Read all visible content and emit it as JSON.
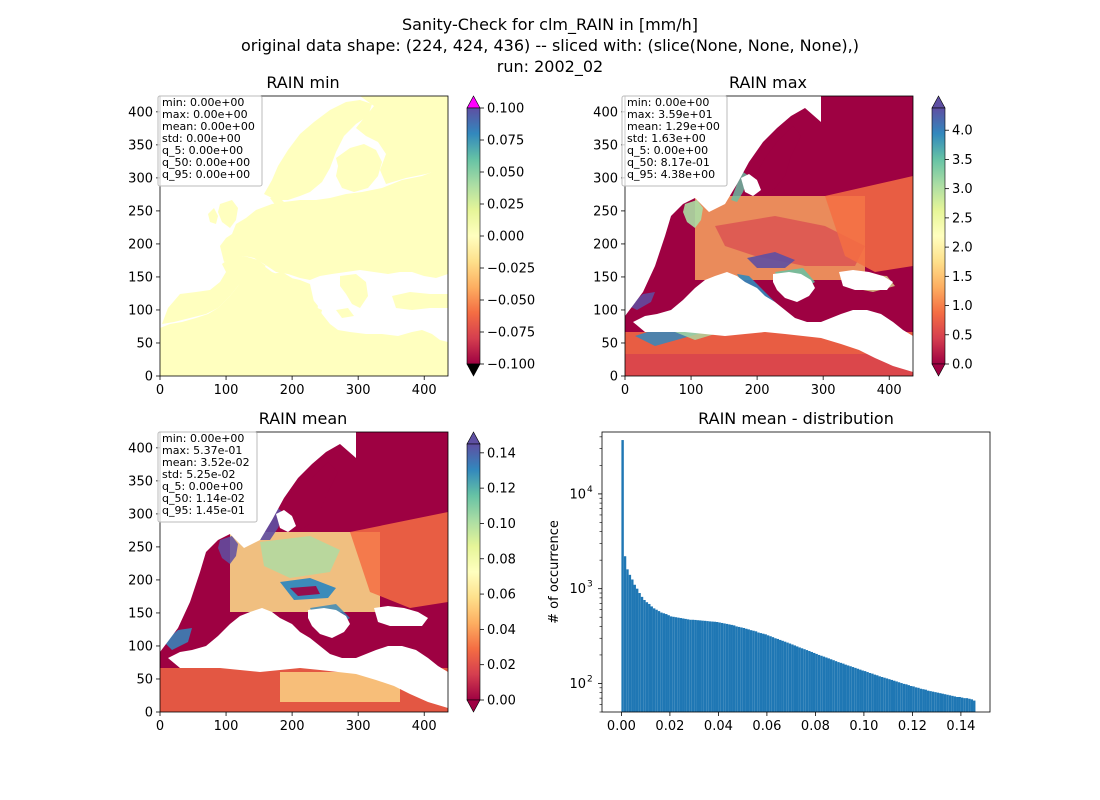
{
  "figure": {
    "suptitle_lines": [
      "Sanity-Check for clm_RAIN in [mm/h]",
      "original data shape: (224, 424, 436) -- sliced with: (slice(None, None, None),)",
      "run: 2002_02"
    ]
  },
  "chart_data": [
    {
      "type": "heatmap",
      "title": "RAIN min",
      "xticks": [
        "0",
        "100",
        "200",
        "300",
        "400"
      ],
      "yticks": [
        "0",
        "50",
        "100",
        "150",
        "200",
        "250",
        "300",
        "350",
        "400"
      ],
      "xlim": [
        0,
        436
      ],
      "ylim": [
        0,
        424
      ],
      "colorbar": {
        "cmap": "Spectral",
        "range": [
          -0.1,
          0.1
        ],
        "ticks": [
          "0.100",
          "0.075",
          "0.050",
          "0.025",
          "0.000",
          "−0.025",
          "−0.050",
          "−0.075",
          "−0.100"
        ],
        "extend": "both",
        "over_color": "#ff00ff",
        "under_color": "#000000"
      },
      "field_value": "0.0 everywhere over land (uniform pale yellow); sea masked (white)",
      "stats": [
        "min: 0.00e+00",
        "max: 0.00e+00",
        "mean: 0.00e+00",
        "std: 0.00e+00",
        "q_5: 0.00e+00",
        "q_50: 0.00e+00",
        "q_95: 0.00e+00"
      ]
    },
    {
      "type": "heatmap",
      "title": "RAIN max",
      "xticks": [
        "0",
        "100",
        "200",
        "300",
        "400"
      ],
      "yticks": [
        "0",
        "50",
        "100",
        "150",
        "200",
        "250",
        "300",
        "350",
        "400"
      ],
      "xlim": [
        0,
        436
      ],
      "ylim": [
        0,
        424
      ],
      "colorbar": {
        "cmap": "Spectral",
        "range": [
          0.0,
          4.38
        ],
        "ticks": [
          "4.0",
          "3.5",
          "3.0",
          "2.5",
          "2.0",
          "1.5",
          "1.0",
          "0.5",
          "0.0"
        ],
        "extend": "both"
      },
      "stats": [
        "min: 0.00e+00",
        "max: 3.59e+01",
        "mean: 1.29e+00",
        "std: 1.63e+00",
        "q_5: 0.00e+00",
        "q_50: 8.17e-01",
        "q_95: 4.38e+00"
      ]
    },
    {
      "type": "heatmap",
      "title": "RAIN mean",
      "xticks": [
        "0",
        "100",
        "200",
        "300",
        "400"
      ],
      "yticks": [
        "0",
        "50",
        "100",
        "150",
        "200",
        "250",
        "300",
        "350",
        "400"
      ],
      "xlim": [
        0,
        436
      ],
      "ylim": [
        0,
        424
      ],
      "colorbar": {
        "cmap": "Spectral",
        "range": [
          0.0,
          0.145
        ],
        "ticks": [
          "0.14",
          "0.12",
          "0.10",
          "0.08",
          "0.06",
          "0.04",
          "0.02",
          "0.00"
        ],
        "extend": "both"
      },
      "stats": [
        "min: 0.00e+00",
        "max: 5.37e-01",
        "mean: 3.52e-02",
        "std: 5.25e-02",
        "q_5: 0.00e+00",
        "q_50: 1.14e-02",
        "q_95: 1.45e-01"
      ]
    },
    {
      "type": "bar",
      "title": "RAIN mean - distribution",
      "ylabel": "# of occurrence",
      "xlabel": "",
      "yscale": "log",
      "xlim": [
        -0.008,
        0.152
      ],
      "ylim": [
        50,
        45000
      ],
      "xticks": [
        "0.00",
        "0.02",
        "0.04",
        "0.06",
        "0.08",
        "0.10",
        "0.12",
        "0.14"
      ],
      "ytick_labels": [
        "10",
        "10",
        "10"
      ],
      "ytick_exponents": [
        "2",
        "3",
        "4"
      ],
      "color": "#1f77b4",
      "bin_start": 0.0,
      "bin_width": 0.001,
      "counts": [
        37000,
        2200,
        1600,
        1400,
        1250,
        1100,
        1000,
        900,
        820,
        760,
        720,
        690,
        650,
        620,
        600,
        580,
        560,
        550,
        540,
        525,
        510,
        505,
        500,
        495,
        490,
        485,
        480,
        475,
        470,
        470,
        468,
        465,
        463,
        460,
        458,
        455,
        452,
        450,
        448,
        445,
        440,
        435,
        430,
        425,
        420,
        415,
        410,
        400,
        395,
        390,
        385,
        378,
        372,
        365,
        360,
        355,
        345,
        340,
        335,
        330,
        322,
        315,
        308,
        300,
        295,
        288,
        282,
        276,
        270,
        264,
        258,
        252,
        246,
        240,
        235,
        230,
        225,
        220,
        215,
        210,
        205,
        200,
        196,
        192,
        188,
        184,
        180,
        176,
        172,
        168,
        165,
        162,
        158,
        155,
        152,
        149,
        146,
        143,
        140,
        137,
        135,
        132,
        129,
        127,
        124,
        122,
        119,
        117,
        115,
        113,
        111,
        109,
        107,
        105,
        103,
        101,
        99,
        98,
        96,
        94,
        93,
        91,
        90,
        88,
        87,
        86,
        84,
        83,
        82,
        81,
        80,
        79,
        78,
        77,
        76,
        75,
        74,
        73,
        72,
        72,
        71,
        70,
        70,
        69,
        68,
        66
      ]
    }
  ]
}
